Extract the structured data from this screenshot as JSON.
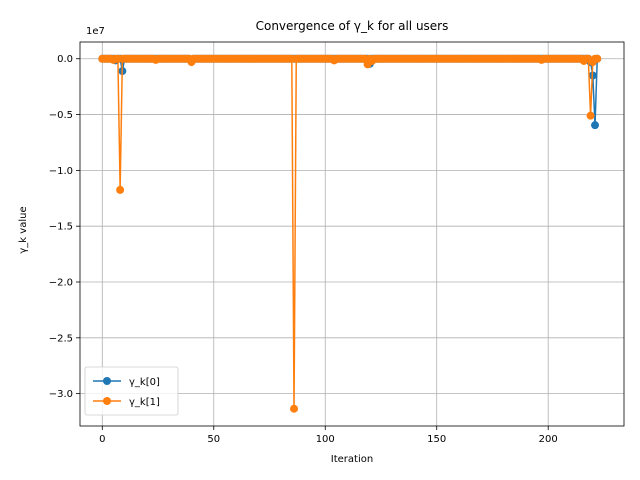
{
  "chart_data": {
    "type": "line",
    "title": "Convergence of γ_k for all users",
    "xlabel": "Iteration",
    "ylabel": "γ_k value",
    "y_multiplier_label": "1e7",
    "xlim": [
      -10,
      234
    ],
    "ylim": [
      -32900000,
      1500000
    ],
    "xticks": [
      0,
      50,
      100,
      150,
      200
    ],
    "yticks": [
      0,
      -5000000,
      -10000000,
      -15000000,
      -20000000,
      -25000000,
      -30000000
    ],
    "ytick_labels": [
      "0.0",
      "−0.5",
      "−1.0",
      "−1.5",
      "−2.0",
      "−2.5",
      "−3.0"
    ],
    "grid": true,
    "legend_location": "lower-left",
    "x_count": 223,
    "series": [
      {
        "name": "γ_k[0]",
        "color": "#1f77b4",
        "marker": "circle",
        "baseline": 0,
        "spikes": [
          [
            6,
            -150000
          ],
          [
            9,
            -1100000
          ],
          [
            40,
            -150000
          ],
          [
            120,
            -450000
          ],
          [
            219,
            -300000
          ],
          [
            220,
            -1500000
          ],
          [
            221,
            -5950000
          ]
        ]
      },
      {
        "name": "γ_k[1]",
        "color": "#ff7f0e",
        "marker": "circle",
        "baseline": 0,
        "spikes": [
          [
            5,
            -100000
          ],
          [
            8,
            -11750000
          ],
          [
            24,
            -100000
          ],
          [
            40,
            -300000
          ],
          [
            86,
            -31350000
          ],
          [
            104,
            -150000
          ],
          [
            119,
            -500000
          ],
          [
            121,
            -200000
          ],
          [
            197,
            -100000
          ],
          [
            216,
            -200000
          ],
          [
            219,
            -5100000
          ],
          [
            220,
            -300000
          ]
        ]
      }
    ]
  }
}
